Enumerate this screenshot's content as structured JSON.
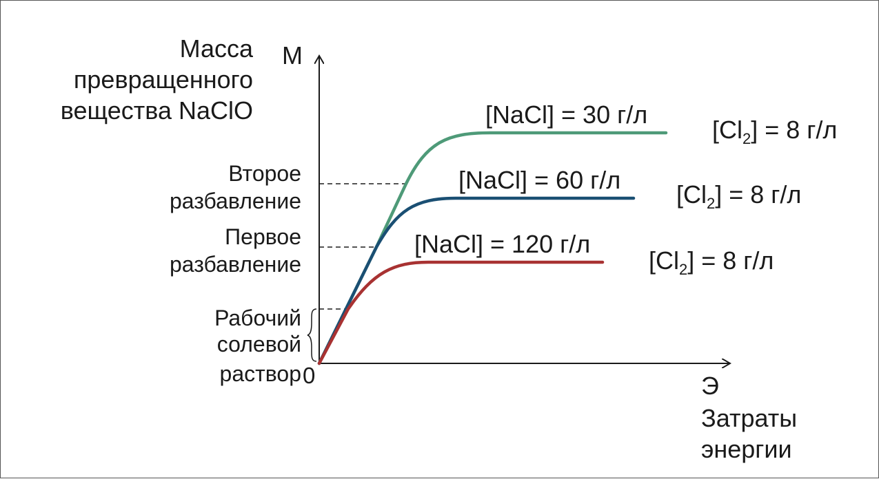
{
  "chart_data": {
    "type": "line",
    "y_axis": {
      "symbol": "M",
      "label": [
        "Масса",
        "превращенного",
        "вещества NaClO"
      ]
    },
    "x_axis": {
      "symbol": "Э",
      "label": [
        "Затраты",
        "энергии"
      ]
    },
    "origin_label": "0",
    "levels": [
      {
        "name": "second_dilution",
        "label": [
          "Второе",
          "разбавление"
        ]
      },
      {
        "name": "first_dilution",
        "label": [
          "Первое",
          "разбавление"
        ]
      },
      {
        "name": "working_brine",
        "label": [
          "Рабочий",
          "солевой",
          "раствор"
        ]
      }
    ],
    "series": [
      {
        "name": "[NaCl] = 30 г/л",
        "cl2_prefix": "[Cl",
        "cl2_sub": "2",
        "cl2_suffix": "] = 8 г/л",
        "color": "#4e9a78"
      },
      {
        "name": "[NaCl] = 60 г/л",
        "cl2_prefix": "[Cl",
        "cl2_sub": "2",
        "cl2_suffix": "] = 8 г/л",
        "color": "#1a4f73"
      },
      {
        "name": "[NaCl] = 120 г/л",
        "cl2_prefix": "[Cl",
        "cl2_sub": "2",
        "cl2_suffix": "] = 8 г/л",
        "color": "#a83232"
      }
    ],
    "grid": false,
    "legend": "inline-right"
  }
}
